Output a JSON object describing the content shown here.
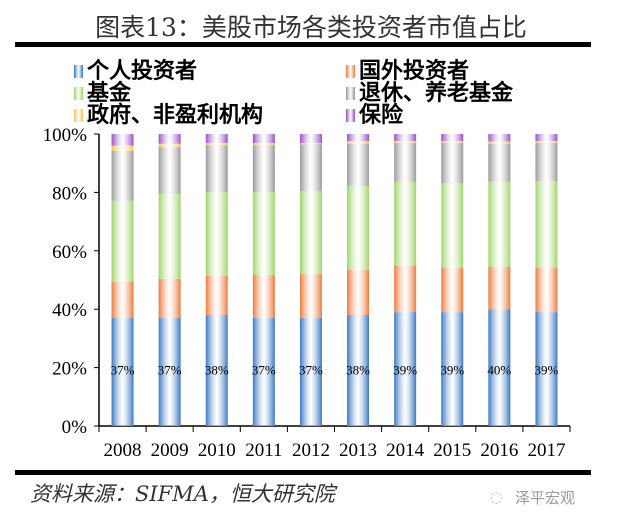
{
  "title": "图表13：美股市场各类投资者市值占比",
  "footer": "资料来源：SIFMA，恒大研究院",
  "watermark": "泽平宏观",
  "chart_data": {
    "type": "bar",
    "stacked": true,
    "categories": [
      "2008",
      "2009",
      "2010",
      "2011",
      "2012",
      "2013",
      "2014",
      "2015",
      "2016",
      "2017"
    ],
    "ylim": [
      0,
      100
    ],
    "yticks": [
      "0%",
      "20%",
      "40%",
      "60%",
      "80%",
      "100%"
    ],
    "legend_position": "top",
    "grid": false,
    "series": [
      {
        "name": "个人投资者",
        "color": "#3a78c3",
        "values": [
          37,
          37,
          38,
          37,
          37,
          38,
          39,
          39,
          40,
          39
        ],
        "labels": [
          "37%",
          "37%",
          "38%",
          "37%",
          "37%",
          "38%",
          "39%",
          "39%",
          "40%",
          "39%"
        ]
      },
      {
        "name": "国外投资者",
        "color": "#ec7a3a",
        "values": [
          12.4,
          13.4,
          13.4,
          14.7,
          15.1,
          15.4,
          15.8,
          15.1,
          14.5,
          15.1
        ]
      },
      {
        "name": "基金",
        "color": "#9ed46a",
        "values": [
          27.7,
          29.1,
          28.7,
          28.4,
          28.4,
          28.8,
          28.8,
          29.1,
          29.1,
          29.8
        ]
      },
      {
        "name": "退休、养老基金",
        "color": "#999999",
        "values": [
          17.1,
          16.0,
          16.1,
          16.1,
          16.0,
          14.5,
          13.4,
          13.8,
          13.1,
          13.1
        ]
      },
      {
        "name": "政府、非盈利机构",
        "color": "#f1c35a",
        "values": [
          1.8,
          1.2,
          0.7,
          0.7,
          0.4,
          0.9,
          0.6,
          0.6,
          0.7,
          0.6
        ]
      },
      {
        "name": "保险",
        "color": "#9b4fc4",
        "values": [
          4.0,
          3.3,
          3.1,
          3.1,
          3.1,
          2.4,
          2.4,
          2.4,
          2.6,
          2.4
        ]
      }
    ]
  }
}
